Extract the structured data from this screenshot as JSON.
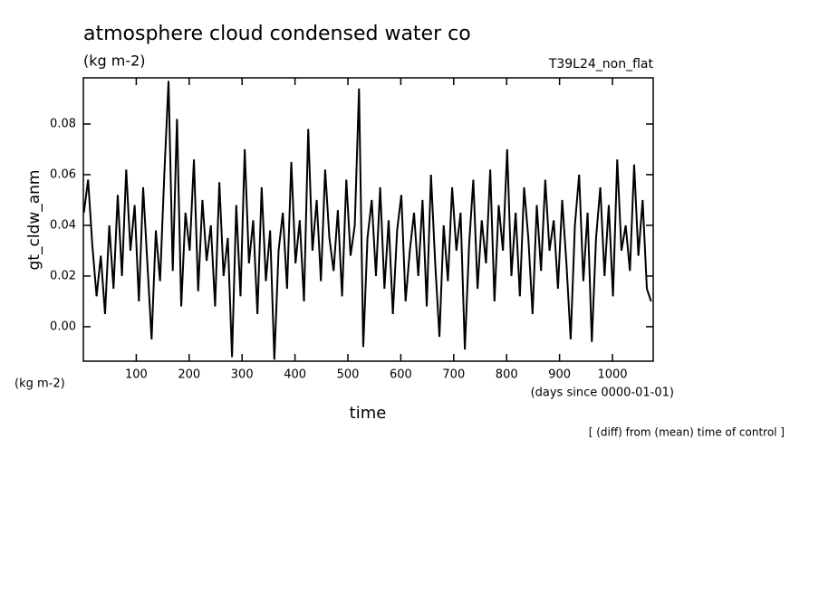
{
  "chart_data": {
    "type": "line",
    "title": "atmosphere cloud condensed water co",
    "subtitle": "(kg m-2)",
    "run_label": "T39L24_non_flat",
    "y_label": "gt_cldw_anm",
    "y_unit": "(kg m-2)",
    "x_label": "time",
    "x_unit": "(days since 0000-01-01)",
    "note": "[ (diff) from (mean) time of control ]",
    "xlim": [
      0,
      1077
    ],
    "ylim": [
      -0.0136,
      0.0982
    ],
    "xticks": [
      100,
      200,
      300,
      400,
      500,
      600,
      700,
      800,
      900,
      1000
    ],
    "yticks": [
      {
        "value": 0,
        "label": "0.00"
      },
      0.02,
      0.04,
      0.06,
      0.08
    ],
    "x": [
      1,
      9,
      17,
      25,
      33,
      41,
      49,
      57,
      65,
      73,
      81,
      89,
      97,
      105,
      113,
      121,
      129,
      137,
      145,
      153,
      161,
      169,
      177,
      185,
      193,
      201,
      209,
      217,
      225,
      233,
      241,
      249,
      257,
      265,
      273,
      281,
      289,
      297,
      305,
      313,
      321,
      329,
      337,
      345,
      353,
      361,
      369,
      377,
      385,
      393,
      401,
      409,
      417,
      425,
      433,
      441,
      449,
      457,
      465,
      473,
      481,
      489,
      497,
      505,
      513,
      521,
      529,
      537,
      545,
      553,
      561,
      569,
      577,
      585,
      593,
      601,
      609,
      617,
      625,
      633,
      641,
      649,
      657,
      665,
      673,
      681,
      689,
      697,
      705,
      713,
      721,
      729,
      737,
      745,
      753,
      761,
      769,
      777,
      785,
      793,
      801,
      809,
      817,
      825,
      833,
      841,
      849,
      857,
      865,
      873,
      881,
      889,
      897,
      905,
      913,
      921,
      929,
      937,
      945,
      953,
      961,
      969,
      977,
      985,
      993,
      1001,
      1009,
      1017,
      1025,
      1033,
      1041,
      1049,
      1057,
      1065,
      1073
    ],
    "series": [
      {
        "name": "gt_cldw_anm",
        "color": "#000000",
        "values": [
          0.045,
          0.058,
          0.032,
          0.012,
          0.028,
          0.005,
          0.04,
          0.015,
          0.052,
          0.02,
          0.062,
          0.03,
          0.048,
          0.01,
          0.055,
          0.025,
          -0.005,
          0.038,
          0.018,
          0.06,
          0.097,
          0.022,
          0.082,
          0.008,
          0.045,
          0.03,
          0.066,
          0.014,
          0.05,
          0.026,
          0.04,
          0.008,
          0.057,
          0.02,
          0.035,
          -0.012,
          0.048,
          0.012,
          0.07,
          0.025,
          0.042,
          0.005,
          0.055,
          0.018,
          0.038,
          -0.013,
          0.03,
          0.045,
          0.015,
          0.065,
          0.025,
          0.042,
          0.01,
          0.078,
          0.03,
          0.05,
          0.018,
          0.062,
          0.035,
          0.022,
          0.046,
          0.012,
          0.058,
          0.028,
          0.04,
          0.094,
          -0.008,
          0.035,
          0.05,
          0.02,
          0.055,
          0.015,
          0.042,
          0.005,
          0.038,
          0.052,
          0.01,
          0.03,
          0.045,
          0.02,
          0.05,
          0.008,
          0.06,
          0.025,
          -0.004,
          0.04,
          0.018,
          0.055,
          0.03,
          0.045,
          -0.009,
          0.032,
          0.058,
          0.015,
          0.042,
          0.025,
          0.062,
          0.01,
          0.048,
          0.03,
          0.07,
          0.02,
          0.045,
          0.012,
          0.055,
          0.035,
          0.005,
          0.048,
          0.022,
          0.058,
          0.03,
          0.042,
          0.015,
          0.05,
          0.025,
          -0.005,
          0.04,
          0.06,
          0.018,
          0.045,
          -0.006,
          0.035,
          0.055,
          0.02,
          0.048,
          0.012,
          0.066,
          0.03,
          0.04,
          0.022,
          0.064,
          0.028,
          0.05,
          0.015,
          0.01
        ]
      }
    ]
  }
}
